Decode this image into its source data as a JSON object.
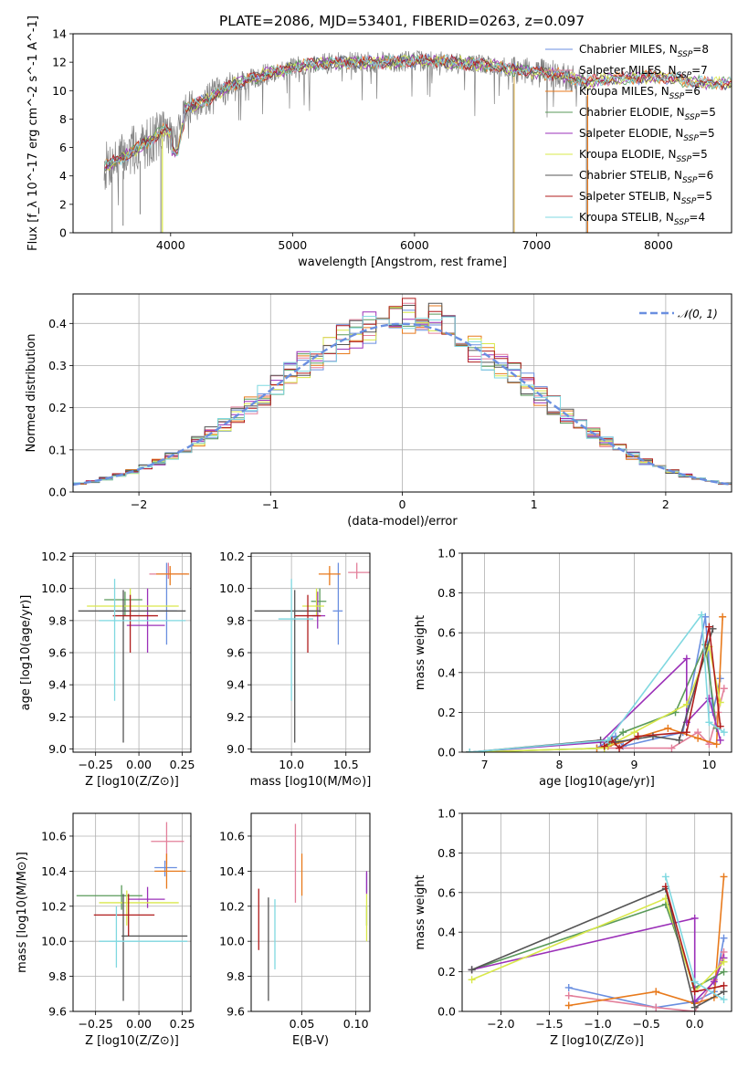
{
  "figure": {
    "title": "PLATE=2086, MJD=53401, FIBERID=0263, z=0.097"
  },
  "models": [
    {
      "label": "Chabrier MILES, N_SSP=8",
      "imf": "Chabrier MILES",
      "n": "8",
      "color": "#6a8fe0"
    },
    {
      "label": "Salpeter MILES, N_SSP=7",
      "imf": "Salpeter MILES",
      "n": "7",
      "color": "#e37f9a"
    },
    {
      "label": "Kroupa MILES, N_SSP=6",
      "imf": "Kroupa MILES",
      "n": "6",
      "color": "#e87a1c"
    },
    {
      "label": "Chabrier ELODIE, N_SSP=5",
      "imf": "Chabrier ELODIE",
      "n": "5",
      "color": "#5a9a5a"
    },
    {
      "label": "Salpeter ELODIE, N_SSP=5",
      "imf": "Salpeter ELODIE",
      "n": "5",
      "color": "#9b30b8"
    },
    {
      "label": "Kroupa ELODIE, N_SSP=5",
      "imf": "Kroupa ELODIE",
      "n": "5",
      "color": "#d9e84a"
    },
    {
      "label": "Chabrier STELIB, N_SSP=6",
      "imf": "Chabrier STELIB",
      "n": "6",
      "color": "#555555"
    },
    {
      "label": "Salpeter STELIB, N_SSP=5",
      "imf": "Salpeter STELIB",
      "n": "5",
      "color": "#b01c1c"
    },
    {
      "label": "Kroupa STELIB, N_SSP=4",
      "imf": "Kroupa STELIB",
      "n": "4",
      "color": "#7fd8e0"
    }
  ],
  "chart_data": [
    {
      "id": "spectrum",
      "type": "line",
      "xlabel": "wavelength [Angstrom, rest frame]",
      "ylabel": "Flux [f_λ 10^-17 erg cm^-2 s^-1 A^-1]",
      "xlim": [
        3200,
        8600
      ],
      "ylim": [
        0,
        14
      ],
      "xticks": [
        4000,
        5000,
        6000,
        7000,
        8000
      ],
      "yticks": [
        0,
        2,
        4,
        6,
        8,
        10,
        12,
        14
      ],
      "continuum_x": [
        3450,
        3600,
        3800,
        3950,
        4050,
        4100,
        4300,
        4500,
        4800,
        5000,
        5200,
        5500,
        5800,
        6000,
        6300,
        6600,
        6800,
        7000,
        7200,
        7400,
        7600,
        7800,
        8000,
        8300,
        8600
      ],
      "continuum_y": [
        4.6,
        5.3,
        6.3,
        7.3,
        6.5,
        8.6,
        9.4,
        10.4,
        11.2,
        11.6,
        11.9,
        12.0,
        12.0,
        12.1,
        12.0,
        11.8,
        11.5,
        11.3,
        11.1,
        10.6,
        10.8,
        10.9,
        11.0,
        10.6,
        10.5
      ],
      "grid": false,
      "legend": "right"
    },
    {
      "id": "residuals",
      "type": "histogram",
      "xlabel": "(data-model)/error",
      "ylabel": "Normed distribution",
      "xlim": [
        -2.5,
        2.5
      ],
      "ylim": [
        0,
        0.47
      ],
      "xticks": [
        -2,
        -1,
        0,
        1,
        2
      ],
      "yticks": [
        0.0,
        0.1,
        0.2,
        0.3,
        0.4
      ],
      "bin_width": 0.1,
      "reference_curve": "N(0,1)",
      "reference_label": "𝒩(0, 1)",
      "grid": true,
      "legend": "top-right"
    },
    {
      "id": "age_vs_Z",
      "type": "errorbar",
      "xlabel": "Z [log10(Z/Z⊙)]",
      "ylabel": "age  [log10(age/yr)]",
      "xlim": [
        -0.38,
        0.3
      ],
      "ylim": [
        8.98,
        10.22
      ],
      "xticks": [
        -0.25,
        0.0,
        0.25
      ],
      "yticks": [
        9.0,
        9.2,
        9.4,
        9.6,
        9.8,
        10.0,
        10.2
      ],
      "points": [
        {
          "x": 0.16,
          "xerr": [
            0.06,
            0.06
          ],
          "y": 9.86,
          "yerr": [
            0.21,
            0.3
          ]
        },
        {
          "x": 0.17,
          "xerr": [
            0.11,
            0.11
          ],
          "y": 10.09,
          "yerr": [
            0.03,
            0.07
          ]
        },
        {
          "x": 0.18,
          "xerr": [
            0.08,
            0.11
          ],
          "y": 10.09,
          "yerr": [
            0.07,
            0.05
          ]
        },
        {
          "x": -0.08,
          "xerr": [
            0.12,
            0.1
          ],
          "y": 9.93,
          "yerr": [
            0.1,
            0.05
          ]
        },
        {
          "x": 0.05,
          "xerr": [
            0.12,
            0.1
          ],
          "y": 9.77,
          "yerr": [
            0.17,
            0.23
          ]
        },
        {
          "x": -0.05,
          "xerr": [
            0.25,
            0.28
          ],
          "y": 9.89,
          "yerr": [
            0.06,
            0.11
          ]
        },
        {
          "x": -0.09,
          "xerr": [
            0.26,
            0.36
          ],
          "y": 9.86,
          "yerr": [
            0.82,
            0.13
          ]
        },
        {
          "x": -0.05,
          "xerr": [
            0.1,
            0.16
          ],
          "y": 9.83,
          "yerr": [
            0.23,
            0.13
          ]
        },
        {
          "x": -0.14,
          "xerr": [
            0.09,
            0.41
          ],
          "y": 9.8,
          "yerr": [
            0.5,
            0.26
          ]
        }
      ]
    },
    {
      "id": "age_vs_mass",
      "type": "errorbar",
      "xlabel": "mass [log10(M/M⊙)]",
      "ylabel": "",
      "xlim": [
        9.63,
        10.72
      ],
      "ylim": [
        8.98,
        10.22
      ],
      "xticks": [
        10.0,
        10.5
      ],
      "yticks": [
        9.0,
        9.2,
        9.4,
        9.6,
        9.8,
        10.0,
        10.2
      ],
      "points": [
        {
          "x": 10.43,
          "xerr": [
            0.05,
            0.04
          ],
          "y": 9.86,
          "yerr": [
            0.21,
            0.3
          ]
        },
        {
          "x": 10.6,
          "xerr": [
            0.08,
            0.12
          ],
          "y": 10.1,
          "yerr": [
            0.04,
            0.06
          ]
        },
        {
          "x": 10.35,
          "xerr": [
            0.1,
            0.1
          ],
          "y": 10.09,
          "yerr": [
            0.07,
            0.05
          ]
        },
        {
          "x": 10.26,
          "xerr": [
            0.08,
            0.06
          ],
          "y": 9.92,
          "yerr": [
            0.07,
            0.08
          ]
        },
        {
          "x": 10.24,
          "xerr": [
            0.05,
            0.07
          ],
          "y": 9.83,
          "yerr": [
            0.08,
            0.15
          ]
        },
        {
          "x": 10.23,
          "xerr": [
            0.13,
            0.07
          ],
          "y": 9.89,
          "yerr": [
            0.06,
            0.11
          ]
        },
        {
          "x": 10.03,
          "xerr": [
            0.37,
            0.24
          ],
          "y": 9.86,
          "yerr": [
            0.82,
            0.13
          ]
        },
        {
          "x": 10.15,
          "xerr": [
            0.12,
            0.12
          ],
          "y": 9.83,
          "yerr": [
            0.23,
            0.13
          ]
        },
        {
          "x": 10.0,
          "xerr": [
            0.12,
            0.2
          ],
          "y": 9.81,
          "yerr": [
            0.51,
            0.25
          ]
        }
      ]
    },
    {
      "id": "mass_weight_vs_age",
      "type": "line",
      "xlabel": "age  [log10(age/yr)]",
      "ylabel": "mass weight",
      "xlim": [
        6.7,
        10.3
      ],
      "ylim": [
        0.0,
        1.0
      ],
      "xticks": [
        7,
        8,
        9,
        10
      ],
      "yticks": [
        0.0,
        0.2,
        0.4,
        0.6,
        0.8,
        1.0
      ],
      "series": [
        {
          "x": [
            8.5,
            8.75,
            8.85,
            9.65,
            9.95,
            10.05,
            10.15
          ],
          "y": [
            0.02,
            0.08,
            0.03,
            0.1,
            0.68,
            0.2,
            0.37
          ]
        },
        {
          "x": [
            8.6,
            9.5,
            9.85,
            10.0,
            10.12,
            10.2
          ],
          "y": [
            0.02,
            0.02,
            0.1,
            0.04,
            0.2,
            0.32
          ]
        },
        {
          "x": [
            8.5,
            8.65,
            9.45,
            9.85,
            10.1,
            10.18
          ],
          "y": [
            0.02,
            0.03,
            0.12,
            0.07,
            0.04,
            0.68
          ]
        },
        {
          "x": [
            6.8,
            8.6,
            8.85,
            9.55,
            9.95,
            10.1
          ],
          "y": [
            0.0,
            0.02,
            0.1,
            0.2,
            0.54,
            0.12
          ]
        },
        {
          "x": [
            6.8,
            8.55,
            9.7,
            9.7,
            10.0,
            10.15
          ],
          "y": [
            0.0,
            0.05,
            0.47,
            0.15,
            0.27,
            0.06
          ]
        },
        {
          "x": [
            6.8,
            8.6,
            9.0,
            9.7,
            10.0,
            10.15
          ],
          "y": [
            0.0,
            0.02,
            0.1,
            0.24,
            0.53,
            0.25
          ]
        },
        {
          "x": [
            6.8,
            8.55,
            8.75,
            9.25,
            9.6,
            10.05
          ],
          "y": [
            0.0,
            0.06,
            0.05,
            0.08,
            0.06,
            0.62
          ]
        },
        {
          "x": [
            8.6,
            8.7,
            8.8,
            9.05,
            9.7,
            10.0,
            10.15
          ],
          "y": [
            0.03,
            0.06,
            0.02,
            0.08,
            0.1,
            0.63,
            0.13
          ]
        },
        {
          "x": [
            6.8,
            8.65,
            9.9,
            10.0,
            10.2
          ],
          "y": [
            0.0,
            0.06,
            0.69,
            0.15,
            0.1
          ]
        }
      ]
    },
    {
      "id": "mass_vs_Z",
      "type": "errorbar",
      "xlabel": "Z [log10(Z/Z⊙)]",
      "ylabel": "mass [log10(M/M⊙)]",
      "xlim": [
        -0.38,
        0.3
      ],
      "ylim": [
        9.6,
        10.73
      ],
      "xticks": [
        -0.25,
        0.0,
        0.25
      ],
      "yticks": [
        9.6,
        9.8,
        10.0,
        10.2,
        10.4,
        10.6
      ],
      "points": [
        {
          "x": 0.15,
          "xerr": [
            0.06,
            0.07
          ],
          "y": 10.42,
          "yerr": [
            0.05,
            0.04
          ]
        },
        {
          "x": 0.16,
          "xerr": [
            0.09,
            0.1
          ],
          "y": 10.57,
          "yerr": [
            0.13,
            0.11
          ]
        },
        {
          "x": 0.16,
          "xerr": [
            0.07,
            0.11
          ],
          "y": 10.4,
          "yerr": [
            0.1,
            0.1
          ]
        },
        {
          "x": -0.1,
          "xerr": [
            0.26,
            0.12
          ],
          "y": 10.26,
          "yerr": [
            0.08,
            0.06
          ]
        },
        {
          "x": 0.05,
          "xerr": [
            0.11,
            0.1
          ],
          "y": 10.24,
          "yerr": [
            0.05,
            0.07
          ]
        },
        {
          "x": -0.07,
          "xerr": [
            0.16,
            0.3
          ],
          "y": 10.22,
          "yerr": [
            0.13,
            0.07
          ]
        },
        {
          "x": -0.09,
          "xerr": [
            0.01,
            0.37
          ],
          "y": 10.03,
          "yerr": [
            0.37,
            0.24
          ]
        },
        {
          "x": -0.06,
          "xerr": [
            0.2,
            0.15
          ],
          "y": 10.15,
          "yerr": [
            0.12,
            0.12
          ]
        },
        {
          "x": -0.13,
          "xerr": [
            0.1,
            0.41
          ],
          "y": 10.0,
          "yerr": [
            0.15,
            0.2
          ]
        }
      ]
    },
    {
      "id": "mass_vs_ebv",
      "type": "errorbar",
      "xlabel": "E(B-V)",
      "ylabel": "",
      "xlim": [
        0.003,
        0.113
      ],
      "ylim": [
        9.6,
        10.73
      ],
      "xticks": [
        0.05,
        0.1
      ],
      "yticks": [
        9.6,
        9.8,
        10.0,
        10.2,
        10.4,
        10.6
      ],
      "points": [
        {
          "x": 0.11,
          "y": 10.33,
          "yerr": [
            0.05,
            0.06
          ]
        },
        {
          "x": 0.044,
          "y": 10.45,
          "yerr": [
            0.23,
            0.22
          ]
        },
        {
          "x": 0.05,
          "y": 10.36,
          "yerr": [
            0.1,
            0.14
          ]
        },
        {
          "x": 0.11,
          "y": 10.15,
          "yerr": [
            0.06,
            0.05
          ]
        },
        {
          "x": 0.11,
          "y": 10.33,
          "yerr": [
            0.06,
            0.07
          ]
        },
        {
          "x": 0.11,
          "y": 10.15,
          "yerr": [
            0.15,
            0.12
          ]
        },
        {
          "x": 0.019,
          "y": 10.03,
          "yerr": [
            0.37,
            0.22
          ]
        },
        {
          "x": 0.01,
          "y": 10.13,
          "yerr": [
            0.18,
            0.17
          ]
        },
        {
          "x": 0.025,
          "y": 10.01,
          "yerr": [
            0.17,
            0.23
          ]
        }
      ]
    },
    {
      "id": "mass_weight_vs_Z",
      "type": "line",
      "xlabel": "Z [log10(Z/Z⊙)]",
      "ylabel": "mass weight",
      "xlim": [
        -2.4,
        0.38
      ],
      "ylim": [
        0.0,
        1.0
      ],
      "xticks": [
        -2.0,
        -1.5,
        -1.0,
        -0.5,
        0.0
      ],
      "yticks": [
        0.0,
        0.2,
        0.4,
        0.6,
        0.8,
        1.0
      ],
      "series": [
        {
          "x": [
            -1.3,
            -0.4,
            0.0,
            0.2,
            0.3
          ],
          "y": [
            0.12,
            0.02,
            0.05,
            0.1,
            0.37
          ]
        },
        {
          "x": [
            -1.3,
            -0.4,
            0.0,
            0.2,
            0.3
          ],
          "y": [
            0.08,
            0.02,
            0.0,
            0.16,
            0.3
          ]
        },
        {
          "x": [
            -1.3,
            -0.4,
            0.0,
            0.2,
            0.3
          ],
          "y": [
            0.03,
            0.1,
            0.04,
            0.07,
            0.68
          ]
        },
        {
          "x": [
            -2.3,
            -0.3,
            0.0,
            0.3
          ],
          "y": [
            0.21,
            0.54,
            0.12,
            0.2
          ]
        },
        {
          "x": [
            -2.3,
            0.0,
            0.0,
            0.2,
            0.3
          ],
          "y": [
            0.21,
            0.47,
            0.05,
            0.15,
            0.27
          ]
        },
        {
          "x": [
            -2.3,
            -0.3,
            0.0,
            0.3
          ],
          "y": [
            0.16,
            0.57,
            0.1,
            0.25
          ]
        },
        {
          "x": [
            -2.3,
            -0.3,
            0.0,
            0.3
          ],
          "y": [
            0.21,
            0.62,
            0.02,
            0.1
          ]
        },
        {
          "x": [
            -0.3,
            0.0,
            0.3
          ],
          "y": [
            0.63,
            0.1,
            0.13
          ]
        },
        {
          "x": [
            -0.3,
            0.0,
            0.3
          ],
          "y": [
            0.68,
            0.15,
            0.06
          ]
        }
      ]
    }
  ]
}
